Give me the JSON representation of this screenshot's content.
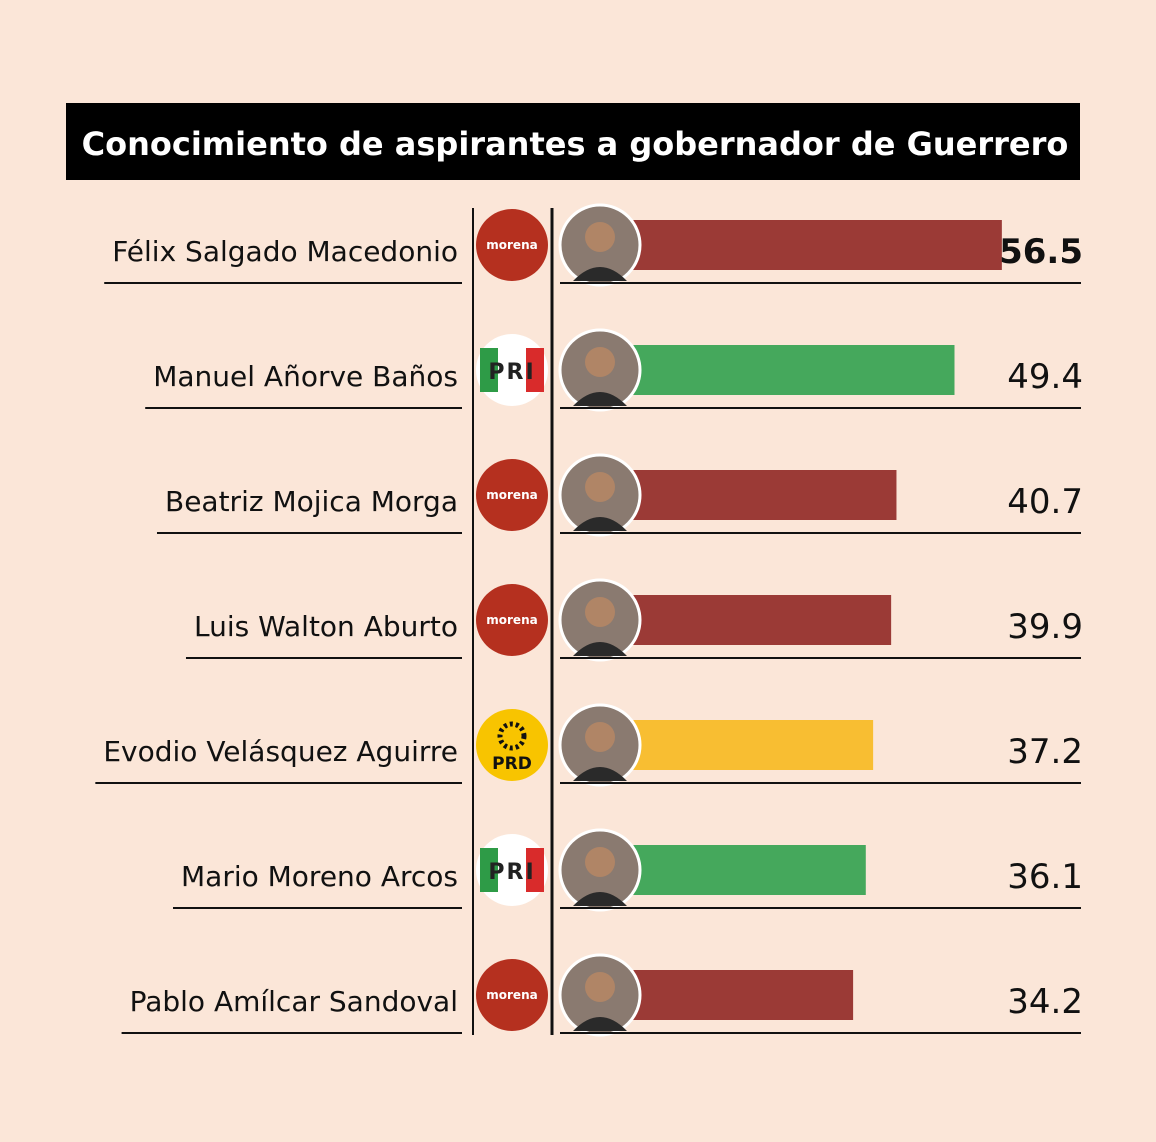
{
  "chart_data": {
    "type": "hbar",
    "title": "Conocimiento de aspirantes a gobernador de Guerrero",
    "categories": [
      "Félix Salgado Macedonio",
      "Manuel Añorve Baños",
      "Beatriz Mojica Morga",
      "Luis Walton Aburto",
      "Evodio Velásquez Aguirre",
      "Mario Moreno Arcos",
      "Pablo Amílcar Sandoval"
    ],
    "parties": [
      "morena",
      "PRI",
      "morena",
      "morena",
      "PRD",
      "PRI",
      "morena"
    ],
    "values": [
      56.5,
      49.4,
      40.7,
      39.9,
      37.2,
      36.1,
      34.2
    ],
    "colors": [
      "#9b3a36",
      "#45a85c",
      "#9b3a36",
      "#9b3a36",
      "#f8be32",
      "#45a85c",
      "#9b3a36"
    ],
    "highlight_index": 0
  }
}
